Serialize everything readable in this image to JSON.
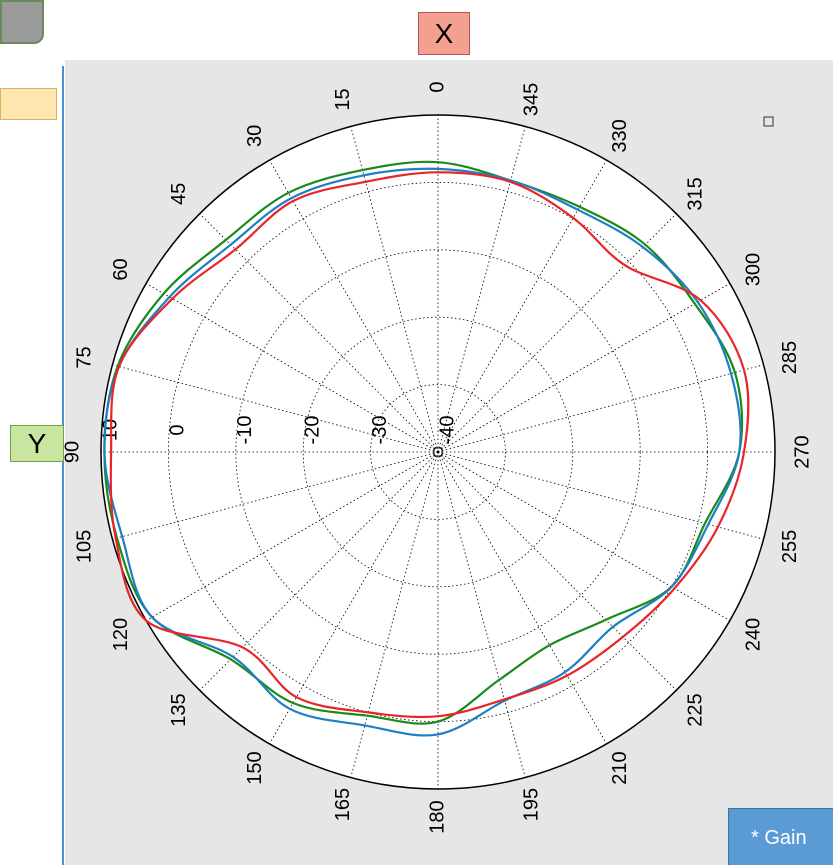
{
  "chart_data": {
    "type": "polar",
    "theta_zero_location": "N",
    "theta_direction": "counterclockwise",
    "theta_ticks": [
      0,
      15,
      30,
      45,
      60,
      75,
      90,
      105,
      120,
      135,
      150,
      165,
      180,
      195,
      210,
      225,
      240,
      255,
      270,
      285,
      300,
      315,
      330,
      345
    ],
    "rlim": [
      -40,
      10
    ],
    "rticks": [
      -40,
      -30,
      -20,
      -10,
      0,
      10
    ],
    "grid": true,
    "theta": [
      0,
      15,
      30,
      45,
      60,
      75,
      90,
      105,
      120,
      135,
      150,
      165,
      180,
      195,
      210,
      225,
      240,
      255,
      270,
      285,
      300,
      315,
      330,
      345
    ],
    "series": [
      {
        "color": "#1a8a1a",
        "values": [
          3.0,
          3.3,
          4.4,
          4.5,
          7.0,
          9.2,
          9.5,
          9.3,
          9.0,
          3.5,
          3.0,
          0.5,
          0.0,
          -5.0,
          -6.9,
          -4.8,
          0.0,
          1.0,
          4.7,
          5.6,
          4.0,
          3.5,
          2.0,
          1.7
        ]
      },
      {
        "color": "#1f7fc4",
        "values": [
          2.0,
          2.5,
          3.5,
          3.5,
          6.0,
          9.0,
          9.5,
          8.5,
          9.0,
          3.0,
          4.0,
          2.0,
          1.9,
          -1.8,
          -2.3,
          -3.3,
          0.0,
          1.5,
          4.7,
          5.0,
          4.5,
          3.0,
          1.5,
          1.7
        ]
      },
      {
        "color": "#e8262a",
        "values": [
          1.5,
          1.5,
          3.0,
          2.5,
          5.5,
          9.0,
          8.5,
          9.5,
          10.0,
          1.0,
          2.0,
          0.0,
          -0.8,
          -2.0,
          -1.7,
          -1.2,
          0.5,
          3.0,
          5.4,
          7.0,
          5.0,
          -0.8,
          0.1,
          1.5
        ]
      }
    ],
    "annotations": [
      "X",
      "Y",
      "* Gain"
    ]
  }
}
